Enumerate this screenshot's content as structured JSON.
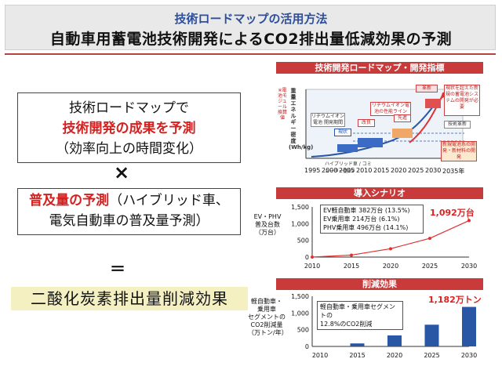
{
  "header": {
    "title_line1": "技術ロードマップの活用方法",
    "title_line2": "自動車用蓄電池技術開発によるCO2排出量低減効果の予測"
  },
  "left": {
    "box1": {
      "line1": "技術ロードマップで",
      "line2": "技術開発の成果を予測",
      "line3": "（効率向上の時間変化）"
    },
    "times": "×",
    "box2": {
      "line1_red": "普及量の予測",
      "line1_rest": "（ハイブリッド車、",
      "line2": "電気自動車の普及量予測）"
    },
    "equals": "＝",
    "result": "二酸化炭素排出量削減効果"
  },
  "roadmap": {
    "header": "技術開発ロードマップ・開発指標",
    "ylabel": "重量エネルギー密度(Wh/kg)",
    "ylabel_top": "※電池モジュール換算値",
    "callouts": [
      "リチウムイオン電池の性能ライン",
      "リチウムイオン電池 開発期間",
      "現状",
      "改良",
      "先進",
      "革新",
      "現状を超えた新規の蓄電池システムの開発が必要",
      "技術革新",
      "新規電池系の開発・新材料の開発"
    ],
    "bottom_note": "ハイブリッド車 / コミューター型EV",
    "x_ticks": [
      "1995",
      "2000",
      "2005",
      "2010",
      "2015",
      "2020",
      "2025",
      "2030",
      "2035年"
    ]
  },
  "scenario": {
    "header": "導入シナリオ",
    "ylabel_lines": [
      "EV・PHV",
      "普及台数",
      "（万台）"
    ],
    "legend": [
      "EV軽自動車  382万台 (13.5%)",
      "EV乗用車    214万台 (6.1%)",
      "PHV乗用車  496万台 (14.1%)"
    ],
    "annotation": "1,092万台",
    "y_ticks": [
      "1,500",
      "1,000",
      "500",
      "0"
    ],
    "x_ticks": [
      "2010",
      "2015",
      "2020",
      "2025",
      "2030"
    ]
  },
  "reduction": {
    "header": "削減効果",
    "ylabel_lines": [
      "軽自動車・",
      "乗用車",
      "セグメントの",
      "CO2削減量",
      "（万トン/年）"
    ],
    "legend": [
      "軽自動車・乗用車セグメントの",
      "12.8%のCO2削減"
    ],
    "annotation": "1,182万トン",
    "y_ticks": [
      "1,500",
      "1,000",
      "500",
      "0"
    ],
    "x_ticks": [
      "2010",
      "2015",
      "2020",
      "2025",
      "2030"
    ]
  },
  "chart_data": [
    {
      "type": "line",
      "title": "導入シナリオ",
      "ylabel": "EV・PHV 普及台数（万台）",
      "x": [
        2010,
        2015,
        2020,
        2025,
        2030
      ],
      "series": [
        {
          "values": [
            0,
            60,
            250,
            560,
            1092
          ]
        }
      ],
      "ylim": [
        0,
        1500
      ],
      "xlim": [
        2010,
        2030
      ],
      "grid": false
    },
    {
      "type": "bar",
      "title": "削減効果",
      "ylabel": "軽自動車・乗用車セグメントのCO2削減量（万トン/年）",
      "categories": [
        "2010",
        "2015",
        "2020",
        "2025",
        "2030"
      ],
      "values": [
        0,
        90,
        330,
        650,
        1182
      ],
      "ylim": [
        0,
        1500
      ],
      "grid": false
    }
  ],
  "colors": {
    "accent_red": "#c93a3a",
    "title_blue": "#2b4f9e",
    "line_red": "#e03030",
    "bar_blue": "#2a56a6",
    "result_bg": "#f5f0c2"
  }
}
